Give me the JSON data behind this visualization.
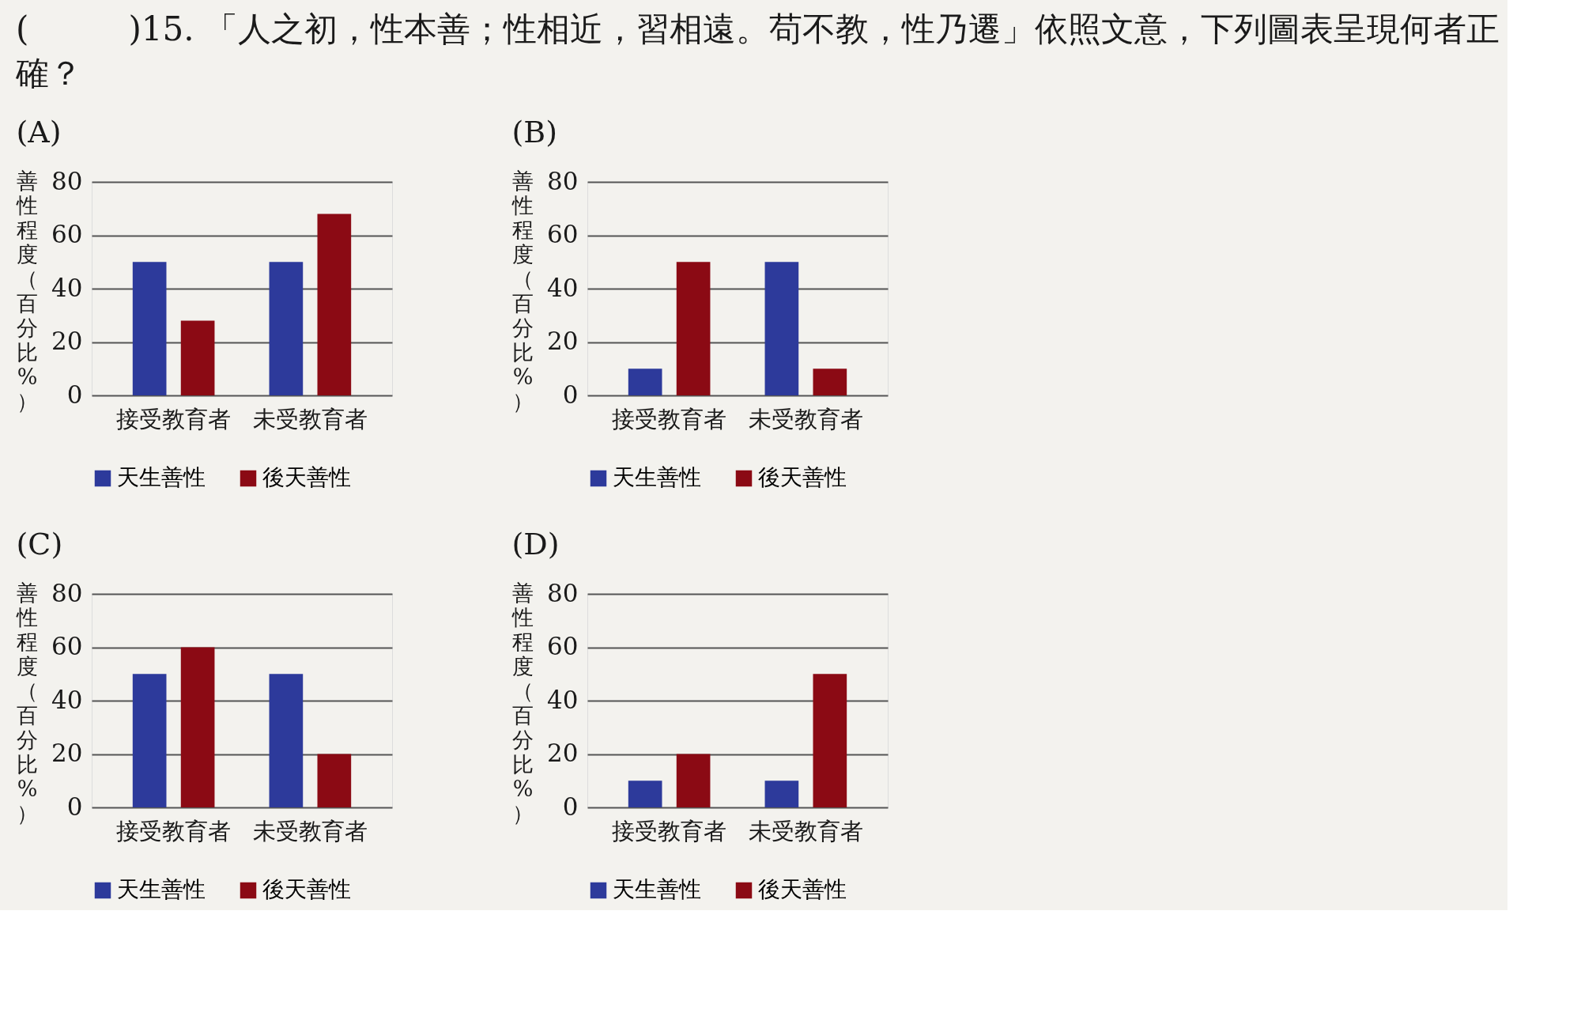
{
  "chart_data": [
    {
      "type": "other",
      "title": "(　　　)15. 「人之初，性本善；性相近，習相遠。苟不教，性乃遷」依照文意，下列圖表呈現何者正確？"
    },
    {
      "type": "bar",
      "title": "(A)",
      "ylabel": "善性程度（百分比%）",
      "categories": [
        "接受教育者",
        "未受教育者"
      ],
      "series": [
        {
          "name": "天生善性",
          "color": "#2d3a9b",
          "values": [
            50,
            50
          ]
        },
        {
          "name": "後天善性",
          "color": "#8b0a14",
          "values": [
            28,
            68
          ]
        }
      ],
      "ylim": [
        0,
        80
      ],
      "yticks": [
        0,
        20,
        40,
        60,
        80
      ],
      "grid": "y",
      "legend": "bottom"
    },
    {
      "type": "bar",
      "title": "(B)",
      "ylabel": "善性程度（百分比%）",
      "categories": [
        "接受教育者",
        "未受教育者"
      ],
      "series": [
        {
          "name": "天生善性",
          "color": "#2d3a9b",
          "values": [
            10,
            50
          ]
        },
        {
          "name": "後天善性",
          "color": "#8b0a14",
          "values": [
            50,
            10
          ]
        }
      ],
      "ylim": [
        0,
        80
      ],
      "yticks": [
        0,
        20,
        40,
        60,
        80
      ],
      "grid": "y",
      "legend": "bottom"
    },
    {
      "type": "bar",
      "title": "(C)",
      "ylabel": "善性程度（百分比%）",
      "categories": [
        "接受教育者",
        "未受教育者"
      ],
      "series": [
        {
          "name": "天生善性",
          "color": "#2d3a9b",
          "values": [
            50,
            50
          ]
        },
        {
          "name": "後天善性",
          "color": "#8b0a14",
          "values": [
            60,
            20
          ]
        }
      ],
      "ylim": [
        0,
        80
      ],
      "yticks": [
        0,
        20,
        40,
        60,
        80
      ],
      "grid": "y",
      "legend": "bottom"
    },
    {
      "type": "bar",
      "title": "(D)",
      "ylabel": "善性程度（百分比%）",
      "categories": [
        "接受教育者",
        "未受教育者"
      ],
      "series": [
        {
          "name": "天生善性",
          "color": "#2d3a9b",
          "values": [
            10,
            10
          ]
        },
        {
          "name": "後天善性",
          "color": "#8b0a14",
          "values": [
            20,
            50
          ]
        }
      ],
      "ylim": [
        0,
        80
      ],
      "yticks": [
        0,
        20,
        40,
        60,
        80
      ],
      "grid": "y",
      "legend": "bottom"
    }
  ]
}
